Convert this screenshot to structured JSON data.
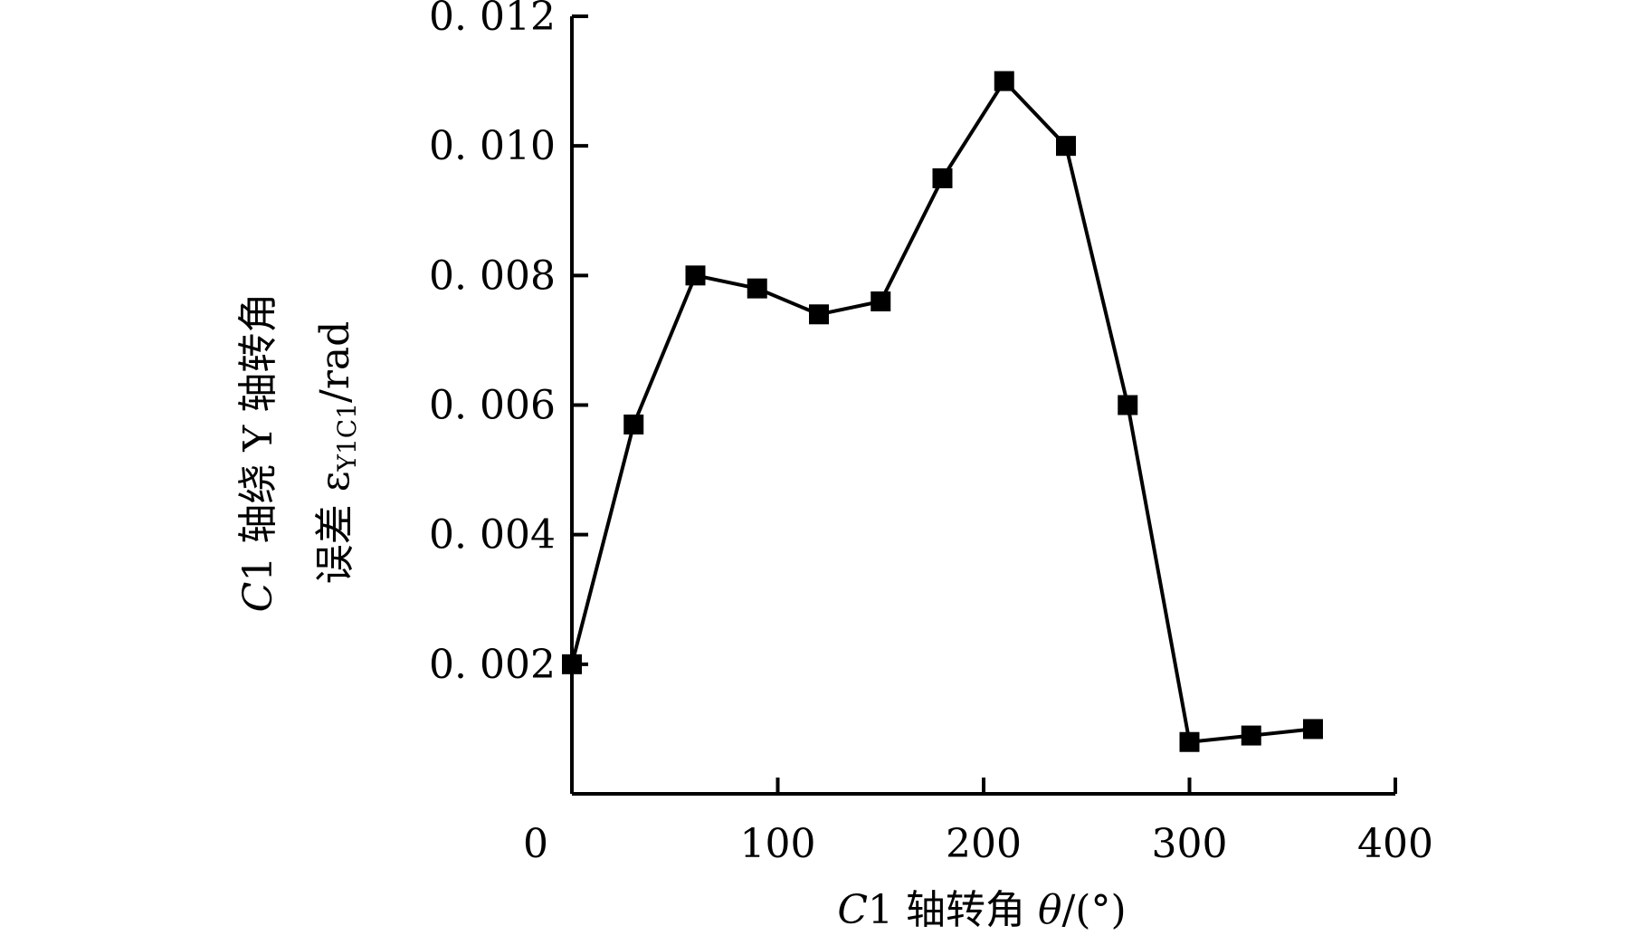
{
  "chart_data": {
    "type": "line",
    "title": "",
    "xlabel": {
      "italic": "C",
      "text": "1 轴转角 ",
      "symbol": "θ",
      "unit": "/(°)"
    },
    "ylabel": {
      "line1_italic": "C",
      "line1": "1 轴绕 Y 轴转角",
      "line2": "误差 ε",
      "line2_sub": "Y1C1",
      "line2_unit": "/rad"
    },
    "xlim": [
      0,
      400
    ],
    "ylim": [
      0,
      0.012
    ],
    "xticks": [
      0,
      100,
      200,
      300,
      400
    ],
    "xtick_labels": [
      "0",
      "100",
      "200",
      "300",
      "400"
    ],
    "yticks": [
      0.002,
      0.004,
      0.006,
      0.008,
      0.01,
      0.012
    ],
    "ytick_labels": [
      "0. 002",
      "0. 004",
      "0. 006",
      "0. 008",
      "0. 010",
      "0. 012"
    ],
    "grid": false,
    "series": [
      {
        "marker": "square",
        "x": [
          0,
          30,
          60,
          90,
          120,
          150,
          180,
          210,
          240,
          270,
          300,
          330,
          360
        ],
        "y": [
          0.002,
          0.0057,
          0.008,
          0.0078,
          0.0074,
          0.0076,
          0.0095,
          0.011,
          0.01,
          0.006,
          0.0008,
          0.0009,
          0.001
        ]
      }
    ]
  }
}
